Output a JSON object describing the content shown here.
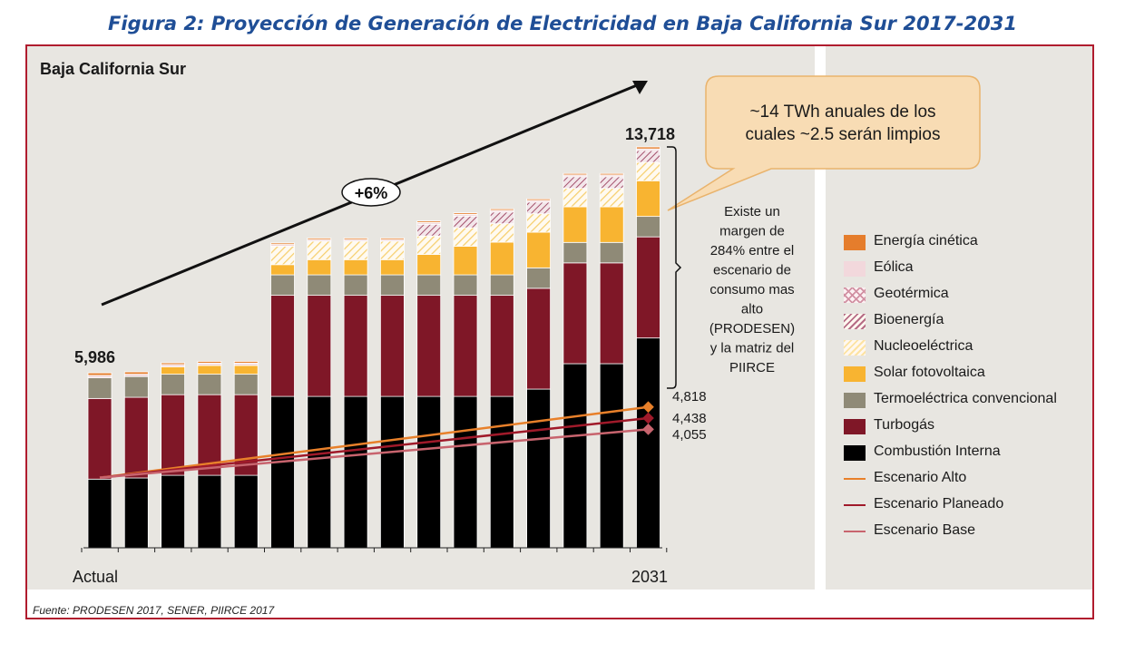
{
  "figure_title": "Figura 2: Proyección de Generación de Electricidad en Baja California Sur 2017-2031",
  "source": "Fuente: PRODESEN 2017, SENER, PIIRCE 2017",
  "colors": {
    "frame_border": "#b01c2e",
    "plot_bg": "#e8e6e1",
    "title_blue": "#1f4e96",
    "callout_bg": "#f8dcb4",
    "callout_border": "#e9b36c"
  },
  "chart_data": {
    "type": "bar",
    "stacked": true,
    "title": "Baja California Sur",
    "xlabel": "",
    "ylabel": "",
    "x_tick_labels": [
      "Actual",
      "2031"
    ],
    "categories": [
      "",
      "",
      "",
      "",
      "",
      "",
      "",
      "",
      "",
      "",
      "",
      "",
      "",
      "",
      "",
      ""
    ],
    "ylim": [
      0,
      14500
    ],
    "grid": false,
    "legend_position": "right",
    "series": [
      {
        "name": "Combustión Interna",
        "color": "#000000",
        "pattern": "solid",
        "values": [
          2350,
          2390,
          2480,
          2480,
          2480,
          5180,
          5180,
          5180,
          5180,
          5180,
          5180,
          5180,
          5430,
          6300,
          6300,
          7180
        ]
      },
      {
        "name": "Turbogás",
        "color": "#7f1727",
        "pattern": "solid",
        "values": [
          2760,
          2760,
          2760,
          2760,
          2760,
          3460,
          3460,
          3460,
          3460,
          3460,
          3460,
          3460,
          3450,
          3450,
          3450,
          3460
        ]
      },
      {
        "name": "Termoeléctrica convencional",
        "color": "#8f8a77",
        "pattern": "solid",
        "values": [
          710,
          710,
          700,
          700,
          700,
          700,
          700,
          700,
          700,
          700,
          700,
          700,
          700,
          700,
          700,
          700
        ]
      },
      {
        "name": "Solar fotovoltaica",
        "color": "#f8b431",
        "pattern": "solid",
        "values": [
          0,
          0,
          250,
          300,
          300,
          350,
          520,
          520,
          520,
          700,
          980,
          1120,
          1220,
          1220,
          1220,
          1220
        ]
      },
      {
        "name": "Nucleoeléctrica",
        "color": "#fde3a2",
        "pattern": "hatch",
        "values": [
          0,
          0,
          0,
          0,
          0,
          630,
          630,
          630,
          630,
          630,
          630,
          630,
          630,
          630,
          630,
          630
        ]
      },
      {
        "name": "Bioenergía",
        "color": "#b66d86",
        "pattern": "hatch",
        "values": [
          0,
          0,
          0,
          0,
          0,
          0,
          0,
          0,
          0,
          400,
          400,
          400,
          400,
          400,
          400,
          400
        ]
      },
      {
        "name": "Geotérmica",
        "color": "#d190a2",
        "pattern": "crosshatch",
        "values": [
          0,
          0,
          0,
          0,
          0,
          0,
          0,
          0,
          0,
          0,
          0,
          0,
          0,
          0,
          0,
          0
        ]
      },
      {
        "name": "Eólica",
        "color": "#f2d8dc",
        "pattern": "solid",
        "values": [
          80,
          80,
          80,
          80,
          80,
          60,
          60,
          60,
          60,
          60,
          60,
          60,
          60,
          60,
          60,
          60
        ]
      },
      {
        "name": "Energía cinética",
        "color": "#e57d2c",
        "pattern": "solid",
        "values": [
          86,
          80,
          60,
          60,
          60,
          50,
          50,
          50,
          50,
          50,
          50,
          50,
          50,
          50,
          50,
          68
        ]
      }
    ],
    "lines": [
      {
        "name": "Escenario Alto",
        "color": "#e8802a",
        "start": 2400,
        "end": 4818,
        "end_label": "4,818"
      },
      {
        "name": "Escenario Planeado",
        "color": "#a01a2a",
        "start": 2400,
        "end": 4438,
        "end_label": "4,438"
      },
      {
        "name": "Escenario Base",
        "color": "#c8646e",
        "start": 2400,
        "end": 4055,
        "end_label": "4,055"
      }
    ],
    "bar_labels": {
      "first": "5,986",
      "last": "13,718"
    },
    "annotations": {
      "growth": "+6%",
      "callout": "~14 TWh anuales de los cuales ~2.5 serán limpios",
      "margin_note": [
        "Existe un",
        "margen de",
        "284% entre el",
        "escenario de",
        "consumo mas",
        "alto",
        "(PRODESEN)",
        "y la matriz del",
        "PIIRCE"
      ]
    }
  },
  "legend": {
    "items": [
      {
        "label": "Energía cinética",
        "kind": "swatch",
        "color": "#e57d2c",
        "pattern": "solid"
      },
      {
        "label": "Eólica",
        "kind": "swatch",
        "color": "#f2d8dc",
        "pattern": "solid"
      },
      {
        "label": "Geotérmica",
        "kind": "swatch",
        "color": "#d190a2",
        "pattern": "crosshatch"
      },
      {
        "label": "Bioenergía",
        "kind": "swatch",
        "color": "#b66d86",
        "pattern": "hatch"
      },
      {
        "label": "Nucleoeléctrica",
        "kind": "swatch",
        "color": "#fde3a2",
        "pattern": "hatch"
      },
      {
        "label": "Solar fotovoltaica",
        "kind": "swatch",
        "color": "#f8b431",
        "pattern": "solid"
      },
      {
        "label": "Termoeléctrica convencional",
        "kind": "swatch",
        "color": "#8f8a77",
        "pattern": "solid"
      },
      {
        "label": "Turbogás",
        "kind": "swatch",
        "color": "#7f1727",
        "pattern": "solid"
      },
      {
        "label": "Combustión Interna",
        "kind": "swatch",
        "color": "#000000",
        "pattern": "solid"
      },
      {
        "label": "Escenario Alto",
        "kind": "line",
        "color": "#e8802a"
      },
      {
        "label": "Escenario Planeado",
        "kind": "line",
        "color": "#a01a2a"
      },
      {
        "label": "Escenario Base",
        "kind": "line",
        "color": "#c8646e"
      }
    ]
  }
}
